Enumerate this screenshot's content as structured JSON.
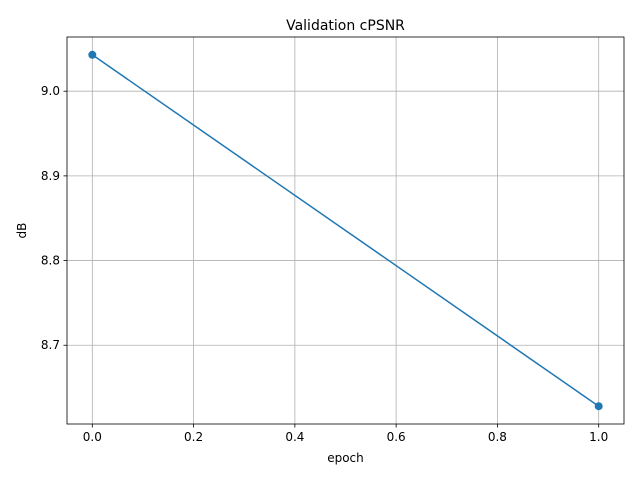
{
  "chart_data": {
    "type": "line",
    "title": "Validation cPSNR",
    "xlabel": "epoch",
    "ylabel": "dB",
    "x": [
      0.0,
      1.0
    ],
    "series": [
      {
        "values": [
          9.043,
          8.628
        ],
        "color": "#1f77b4",
        "marker": "circle"
      }
    ],
    "xlim": [
      -0.05,
      1.05
    ],
    "ylim": [
      8.607,
      9.064
    ],
    "xticks": [
      0.0,
      0.2,
      0.4,
      0.6,
      0.8,
      1.0
    ],
    "xtick_labels": [
      "0.0",
      "0.2",
      "0.4",
      "0.6",
      "0.8",
      "1.0"
    ],
    "yticks": [
      8.7,
      8.8,
      8.9,
      9.0
    ],
    "ytick_labels": [
      "8.7",
      "8.8",
      "8.9",
      "9.0"
    ],
    "grid": true,
    "legend": false
  }
}
